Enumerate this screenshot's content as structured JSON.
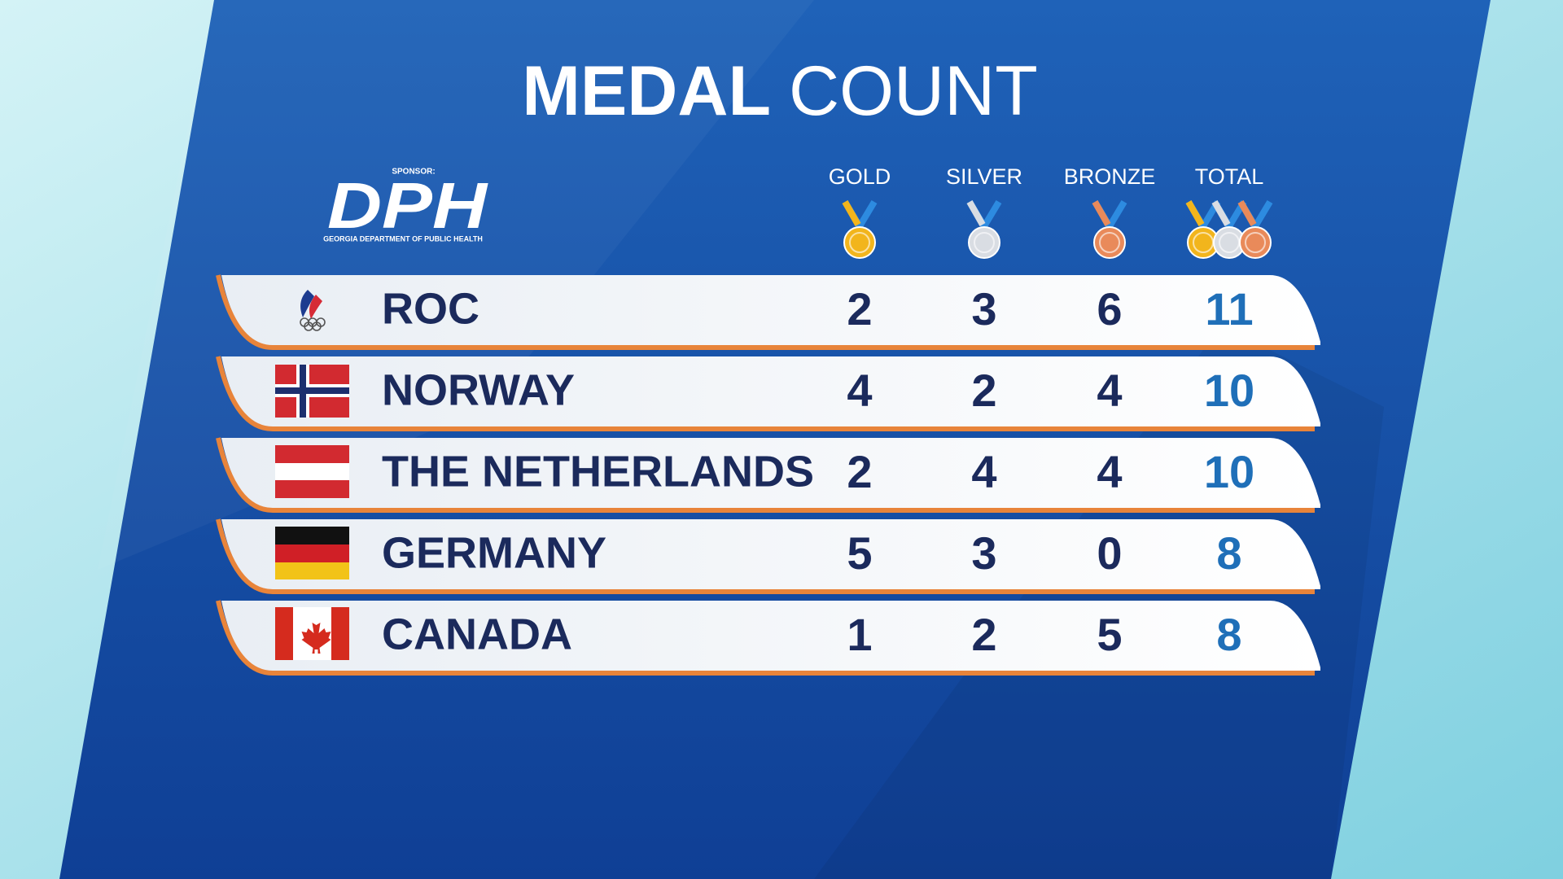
{
  "header": {
    "title_bold": "MEDAL",
    "title_light": "COUNT"
  },
  "sponsor": {
    "label": "SPONSOR:",
    "logo": "DPH",
    "name": "GEORGIA DEPARTMENT OF PUBLIC HEALTH"
  },
  "table": {
    "columns": [
      "GOLD",
      "SILVER",
      "BRONZE",
      "TOTAL"
    ],
    "rows": [
      {
        "country": "ROC",
        "gold": 2,
        "silver": 3,
        "bronze": 6,
        "total": 11
      },
      {
        "country": "NORWAY",
        "gold": 4,
        "silver": 2,
        "bronze": 4,
        "total": 10
      },
      {
        "country": "THE NETHERLANDS",
        "gold": 2,
        "silver": 4,
        "bronze": 4,
        "total": 10
      },
      {
        "country": "GERMANY",
        "gold": 5,
        "silver": 3,
        "bronze": 0,
        "total": 8
      },
      {
        "country": "CANADA",
        "gold": 1,
        "silver": 2,
        "bronze": 5,
        "total": 8
      }
    ]
  }
}
